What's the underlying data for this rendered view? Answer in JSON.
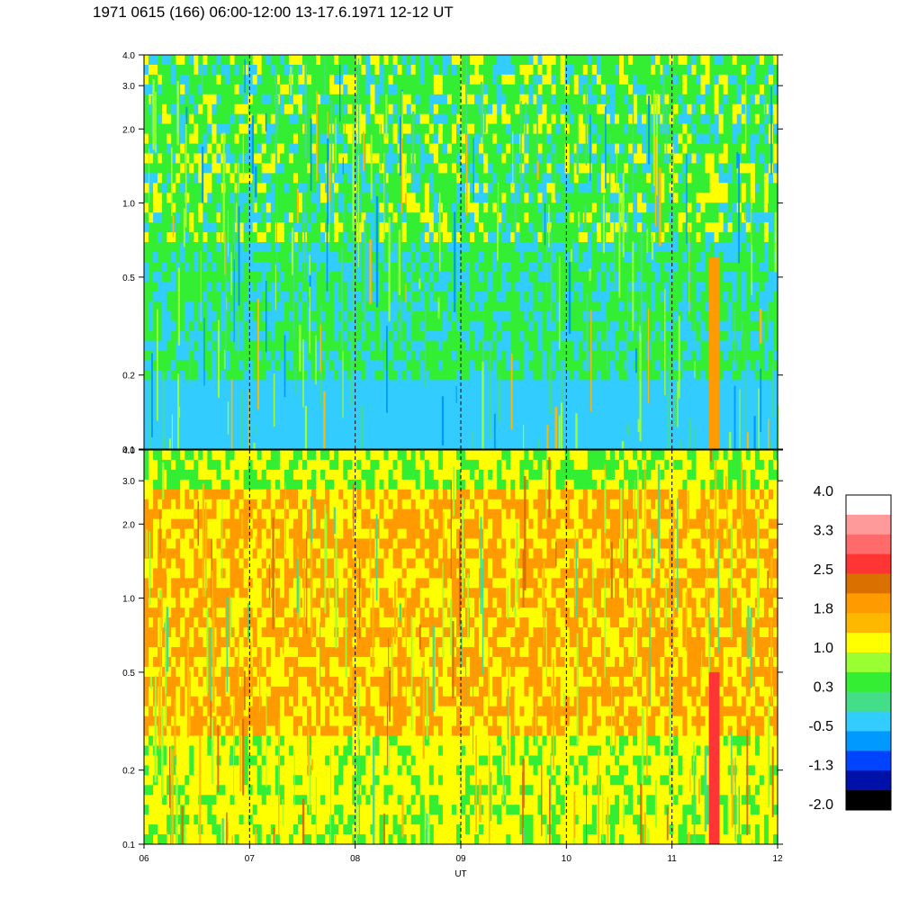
{
  "chart_data": {
    "type": "heatmap",
    "title": "1971 0615 (166) 06:00-12:00 13-17.6.1971  12-12 UT",
    "xlabel": "UT",
    "x_tick_labels": [
      "06",
      "07",
      "08",
      "09",
      "10",
      "11",
      "12"
    ],
    "x_range": [
      6,
      12
    ],
    "dashed_gridlines_x": [
      7,
      8,
      9,
      10,
      11
    ],
    "y_scale": "log",
    "y_range": [
      0.1,
      4.0
    ],
    "y_tick_labels": [
      "0.1",
      "0.2",
      "0.5",
      "1.0",
      "2.0",
      "3.0",
      "4.0"
    ],
    "panels": [
      {
        "name": "upper",
        "dominant_levels": [
          "-0.5",
          "0.3",
          "1.0"
        ],
        "features": [
          {
            "x": [
              11.35,
              11.45
            ],
            "y": [
              0.1,
              0.6
            ],
            "level": "1.8"
          }
        ]
      },
      {
        "name": "lower",
        "dominant_levels": [
          "1.0",
          "1.8",
          "0.3"
        ],
        "features": [
          {
            "x": [
              11.35,
              11.45
            ],
            "y": [
              0.1,
              0.5
            ],
            "level": "2.5"
          }
        ]
      }
    ],
    "colorbar": {
      "tick_labels": [
        "4.0",
        "3.3",
        "2.5",
        "1.8",
        "1.0",
        "0.3",
        "-0.5",
        "-1.3",
        "-2.0"
      ],
      "colors_top_to_bottom": [
        "#ffffff",
        "#ff9a9a",
        "#ff6a6a",
        "#ff3535",
        "#d97000",
        "#ff9a00",
        "#ffb800",
        "#ffff00",
        "#99ff33",
        "#33ee33",
        "#44dd88",
        "#33ccff",
        "#0099ff",
        "#0044ff",
        "#0011aa",
        "#000000"
      ]
    }
  }
}
